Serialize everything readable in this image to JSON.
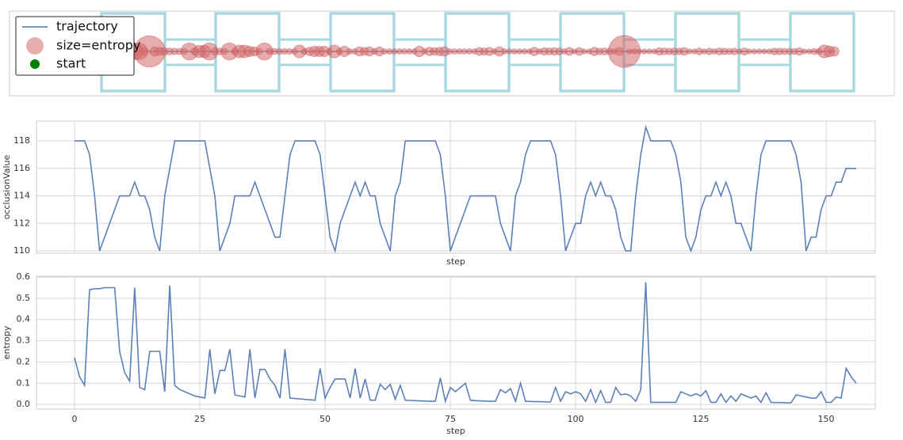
{
  "chart_data": [
    {
      "type": "trajectory",
      "series": [
        {
          "name": "trajectory",
          "color": "#4c72b0"
        },
        {
          "name": "size=entropy",
          "color": "#d46a6a"
        },
        {
          "name": "start",
          "color": "#008000"
        }
      ],
      "x": [
        0,
        1,
        2,
        3,
        4,
        5,
        6,
        7,
        8,
        9,
        10,
        11,
        12,
        13,
        14,
        15,
        16,
        17,
        18,
        19,
        20,
        21,
        22,
        23,
        24,
        25,
        26,
        27,
        28,
        29,
        30,
        31,
        32,
        33,
        34,
        35,
        36,
        37,
        38,
        39,
        40,
        41,
        42,
        43,
        44,
        45,
        46,
        47,
        48,
        49,
        50,
        51,
        52,
        53,
        54,
        55,
        56,
        57,
        58,
        59,
        60,
        61,
        62,
        63,
        64,
        65,
        66,
        67,
        68,
        69,
        70,
        71,
        72,
        73,
        74,
        75,
        76,
        77,
        78,
        79,
        80,
        81,
        82,
        83,
        84,
        85,
        86,
        87,
        88,
        89,
        90,
        91,
        92,
        93,
        94,
        95,
        96,
        97,
        98,
        99,
        100,
        101,
        102,
        103,
        104,
        105,
        106,
        107,
        108,
        109,
        110,
        111,
        112,
        113,
        114,
        115,
        116,
        117,
        118,
        119,
        120,
        121,
        122,
        123,
        124,
        125,
        126,
        127,
        128,
        129,
        130,
        131,
        132,
        133,
        134,
        135,
        136,
        137,
        138,
        139,
        140,
        141,
        142,
        143,
        144,
        145,
        146,
        147,
        148,
        149,
        150,
        151,
        152,
        153,
        154,
        155,
        156
      ],
      "xlim": [
        -9,
        168
      ]
    },
    {
      "type": "line",
      "xlabel": "step",
      "ylabel": "occlusionValue",
      "x": [
        0,
        1,
        2,
        3,
        4,
        5,
        6,
        7,
        8,
        9,
        10,
        11,
        12,
        13,
        14,
        15,
        16,
        17,
        18,
        19,
        20,
        21,
        22,
        23,
        24,
        25,
        26,
        27,
        28,
        29,
        30,
        31,
        32,
        33,
        34,
        35,
        36,
        37,
        38,
        39,
        40,
        41,
        42,
        43,
        44,
        45,
        46,
        47,
        48,
        49,
        50,
        51,
        52,
        53,
        54,
        55,
        56,
        57,
        58,
        59,
        60,
        61,
        62,
        63,
        64,
        65,
        66,
        67,
        68,
        69,
        70,
        71,
        72,
        73,
        74,
        75,
        76,
        77,
        78,
        79,
        80,
        81,
        82,
        83,
        84,
        85,
        86,
        87,
        88,
        89,
        90,
        91,
        92,
        93,
        94,
        95,
        96,
        97,
        98,
        99,
        100,
        101,
        102,
        103,
        104,
        105,
        106,
        107,
        108,
        109,
        110,
        111,
        112,
        113,
        114,
        115,
        116,
        117,
        118,
        119,
        120,
        121,
        122,
        123,
        124,
        125,
        126,
        127,
        128,
        129,
        130,
        131,
        132,
        133,
        134,
        135,
        136,
        137,
        138,
        139,
        140,
        141,
        142,
        143,
        144,
        145,
        146,
        147,
        148,
        149,
        150,
        151,
        152,
        153,
        154,
        155,
        156
      ],
      "series": [
        {
          "color": "#4c72b0",
          "values": [
            118,
            118,
            118,
            117,
            114,
            110,
            111,
            112,
            113,
            114,
            114,
            114,
            115,
            114,
            114,
            113,
            111,
            110,
            114,
            116,
            118,
            118,
            118,
            118,
            118,
            118,
            118,
            116,
            114,
            110,
            111,
            112,
            114,
            114,
            114,
            114,
            115,
            114,
            113,
            112,
            111,
            111,
            114,
            117,
            118,
            118,
            118,
            118,
            118,
            117,
            114,
            111,
            110,
            112,
            113,
            114,
            115,
            114,
            115,
            114,
            114,
            112,
            111,
            110,
            114,
            115,
            118,
            118,
            118,
            118,
            118,
            118,
            118,
            117,
            114,
            110,
            111,
            112,
            113,
            114,
            114,
            114,
            114,
            114,
            114,
            112,
            111,
            110,
            114,
            115,
            117,
            118,
            118,
            118,
            118,
            118,
            117,
            114,
            110,
            111,
            112,
            112,
            114,
            115,
            114,
            115,
            114,
            114,
            113,
            111,
            110,
            110,
            114,
            117,
            119,
            118,
            118,
            118,
            118,
            118,
            117,
            115,
            111,
            110,
            111,
            113,
            114,
            114,
            115,
            114,
            115,
            114,
            112,
            112,
            111,
            110,
            114,
            117,
            118,
            118,
            118,
            118,
            118,
            118,
            117,
            115,
            110,
            111,
            111,
            113,
            114,
            114,
            115,
            115,
            116,
            116,
            116
          ]
        }
      ],
      "xlim": [
        -7.6,
        159.8
      ],
      "xticks": [
        0,
        25,
        50,
        75,
        100,
        125,
        150
      ],
      "xtick_labels": false,
      "ylim": [
        109.83,
        119.44
      ],
      "yticks": [
        110,
        112,
        114,
        116,
        118
      ],
      "grid": true
    },
    {
      "type": "line",
      "xlabel": "step",
      "ylabel": "entropy",
      "x": [
        0,
        1,
        2,
        3,
        4,
        5,
        6,
        7,
        8,
        9,
        10,
        11,
        12,
        13,
        14,
        15,
        16,
        17,
        18,
        19,
        20,
        21,
        22,
        23,
        24,
        25,
        26,
        27,
        28,
        29,
        30,
        31,
        32,
        33,
        34,
        35,
        36,
        37,
        38,
        39,
        40,
        41,
        42,
        43,
        44,
        45,
        46,
        47,
        48,
        49,
        50,
        51,
        52,
        53,
        54,
        55,
        56,
        57,
        58,
        59,
        60,
        61,
        62,
        63,
        64,
        65,
        66,
        67,
        68,
        69,
        70,
        71,
        72,
        73,
        74,
        75,
        76,
        77,
        78,
        79,
        80,
        81,
        82,
        83,
        84,
        85,
        86,
        87,
        88,
        89,
        90,
        91,
        92,
        93,
        94,
        95,
        96,
        97,
        98,
        99,
        100,
        101,
        102,
        103,
        104,
        105,
        106,
        107,
        108,
        109,
        110,
        111,
        112,
        113,
        114,
        115,
        116,
        117,
        118,
        119,
        120,
        121,
        122,
        123,
        124,
        125,
        126,
        127,
        128,
        129,
        130,
        131,
        132,
        133,
        134,
        135,
        136,
        137,
        138,
        139,
        140,
        141,
        142,
        143,
        144,
        145,
        146,
        147,
        148,
        149,
        150,
        151,
        152,
        153,
        154,
        155,
        156
      ],
      "series": [
        {
          "color": "#4c72b0",
          "values": [
            0.22,
            0.13,
            0.09,
            0.54,
            0.545,
            0.545,
            0.55,
            0.55,
            0.55,
            0.25,
            0.15,
            0.11,
            0.55,
            0.08,
            0.07,
            0.25,
            0.25,
            0.25,
            0.06,
            0.56,
            0.09,
            0.07,
            0.06,
            0.05,
            0.04,
            0.035,
            0.03,
            0.26,
            0.05,
            0.16,
            0.16,
            0.26,
            0.045,
            0.04,
            0.035,
            0.26,
            0.03,
            0.165,
            0.165,
            0.12,
            0.09,
            0.03,
            0.26,
            0.03,
            0.028,
            0.026,
            0.024,
            0.022,
            0.02,
            0.17,
            0.03,
            0.08,
            0.12,
            0.12,
            0.12,
            0.03,
            0.17,
            0.03,
            0.12,
            0.02,
            0.02,
            0.095,
            0.07,
            0.095,
            0.025,
            0.09,
            0.02,
            0.019,
            0.018,
            0.017,
            0.016,
            0.015,
            0.015,
            0.125,
            0.015,
            0.08,
            0.06,
            0.08,
            0.1,
            0.02,
            0.018,
            0.017,
            0.016,
            0.015,
            0.015,
            0.07,
            0.055,
            0.075,
            0.015,
            0.1,
            0.015,
            0.014,
            0.013,
            0.013,
            0.012,
            0.012,
            0.08,
            0.015,
            0.06,
            0.05,
            0.06,
            0.05,
            0.015,
            0.07,
            0.01,
            0.065,
            0.01,
            0.01,
            0.08,
            0.045,
            0.05,
            0.04,
            0.015,
            0.07,
            0.575,
            0.01,
            0.01,
            0.01,
            0.01,
            0.01,
            0.01,
            0.06,
            0.05,
            0.04,
            0.05,
            0.04,
            0.065,
            0.01,
            0.01,
            0.05,
            0.01,
            0.04,
            0.015,
            0.05,
            0.04,
            0.03,
            0.04,
            0.01,
            0.055,
            0.01,
            0.009,
            0.009,
            0.008,
            0.008,
            0.045,
            0.04,
            0.035,
            0.03,
            0.03,
            0.06,
            0.01,
            0.01,
            0.035,
            0.03,
            0.17,
            0.13,
            0.1
          ]
        }
      ],
      "xlim": [
        -7.6,
        159.8
      ],
      "xticks": [
        0,
        25,
        50,
        75,
        100,
        125,
        150
      ],
      "xtick_labels": true,
      "ylim": [
        -0.022,
        0.604
      ],
      "yticks": [
        {
          "value": 0,
          "label": "0.0"
        },
        0.1,
        0.2,
        0.3,
        0.4,
        0.5,
        0.6
      ],
      "grid": true
    }
  ]
}
